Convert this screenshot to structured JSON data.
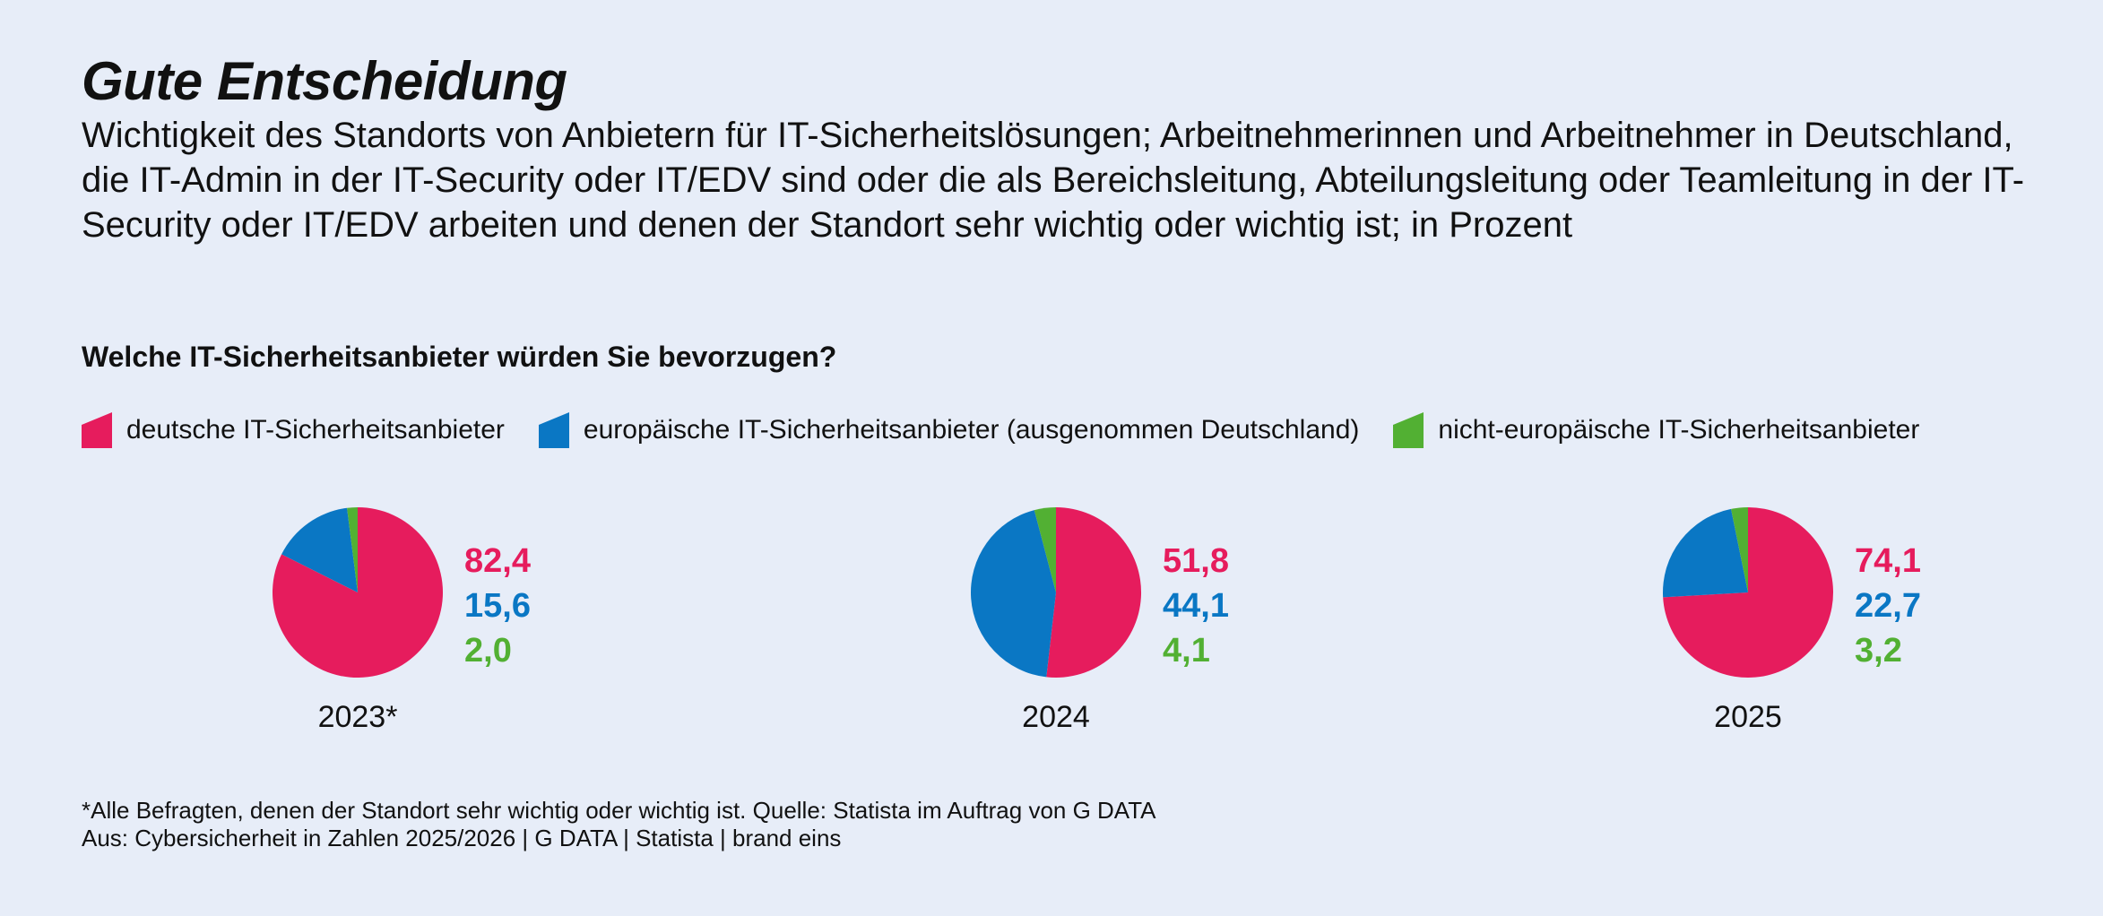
{
  "title": "Gute Entscheidung",
  "subtitle": "Wichtigkeit des Standorts von Anbietern für IT-Sicherheitslösungen; Arbeitnehmerinnen und Arbeitnehmer in Deutschland, die IT-Admin in der IT-Security oder IT/EDV sind oder die als Bereichsleitung, Abteilungsleitung oder Teamleitung in der IT-Security oder IT/EDV arbeiten und denen der Standort sehr wichtig oder wichtig ist; in Prozent",
  "question": "Welche IT-Sicherheitsanbieter würden Sie bevorzugen?",
  "legend": [
    {
      "label": "deutsche IT-Sicherheitsanbieter",
      "color": "#e61c5d"
    },
    {
      "label": "europäische IT-Sicherheitsanbieter (ausgenommen Deutschland)",
      "color": "#0a77c4"
    },
    {
      "label": "nicht-europäische IT-Sicherheitsanbieter",
      "color": "#52b033"
    }
  ],
  "chart_data": [
    {
      "type": "pie",
      "year_label": "2023*",
      "categories": [
        "deutsche IT-Sicherheitsanbieter",
        "europäische IT-Sicherheitsanbieter (ausgenommen Deutschland)",
        "nicht-europäische IT-Sicherheitsanbieter"
      ],
      "values": [
        82.4,
        15.6,
        2.0
      ],
      "value_labels": [
        "82,4",
        "15,6",
        "2,0"
      ],
      "colors": [
        "#e61c5d",
        "#0a77c4",
        "#52b033"
      ]
    },
    {
      "type": "pie",
      "year_label": "2024",
      "categories": [
        "deutsche IT-Sicherheitsanbieter",
        "europäische IT-Sicherheitsanbieter (ausgenommen Deutschland)",
        "nicht-europäische IT-Sicherheitsanbieter"
      ],
      "values": [
        51.8,
        44.1,
        4.1
      ],
      "value_labels": [
        "51,8",
        "44,1",
        "4,1"
      ],
      "colors": [
        "#e61c5d",
        "#0a77c4",
        "#52b033"
      ]
    },
    {
      "type": "pie",
      "year_label": "2025",
      "categories": [
        "deutsche IT-Sicherheitsanbieter",
        "europäische IT-Sicherheitsanbieter (ausgenommen Deutschland)",
        "nicht-europäische IT-Sicherheitsanbieter"
      ],
      "values": [
        74.1,
        22.7,
        3.2
      ],
      "value_labels": [
        "74,1",
        "22,7",
        "3,2"
      ],
      "colors": [
        "#e61c5d",
        "#0a77c4",
        "#52b033"
      ]
    }
  ],
  "footer": {
    "note": "*Alle Befragten, denen der Standort sehr wichtig oder wichtig ist. Quelle: Statista im Auftrag von G DATA",
    "source": "Aus: Cybersicherheit in Zahlen 2025/2026 | G DATA | Statista | brand eins"
  }
}
